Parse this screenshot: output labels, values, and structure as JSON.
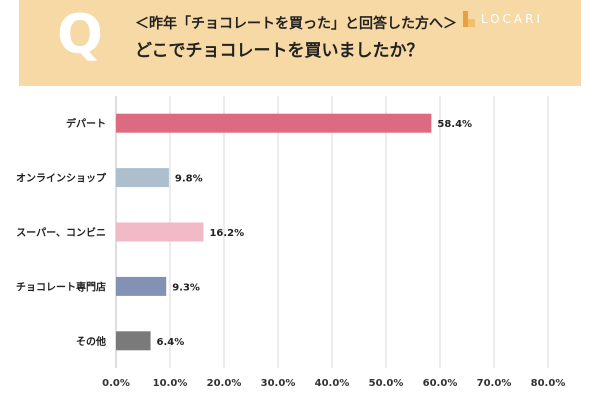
{
  "header": {
    "q_letter": "Q",
    "title_line1": "＜昨年「チョコレートを買った」と回答した方へ＞",
    "title_line2": "どこでチョコレートを買いましたか？",
    "brand": "LOCARI",
    "brand_icon": "locari-logo-icon",
    "background_color": "#f6d9a4"
  },
  "chart_data": {
    "type": "bar",
    "orientation": "horizontal",
    "categories": [
      "デパート",
      "オンラインショップ",
      "スーパー、コンビニ",
      "チョコレート専門店",
      "その他"
    ],
    "values": [
      58.4,
      9.8,
      16.2,
      9.3,
      6.4
    ],
    "value_labels": [
      "58.4%",
      "9.8%",
      "16.2%",
      "9.3%",
      "6.4%"
    ],
    "colors": [
      "#dc6a80",
      "#adbfcc",
      "#f2b9c6",
      "#8392b4",
      "#7a7a7a"
    ],
    "xlim": [
      0,
      80
    ],
    "x_ticks": [
      "0.0%",
      "10.0%",
      "20.0%",
      "30.0%",
      "40.0%",
      "50.0%",
      "60.0%",
      "70.0%",
      "80.0%"
    ],
    "grid": true,
    "legend": "none"
  }
}
